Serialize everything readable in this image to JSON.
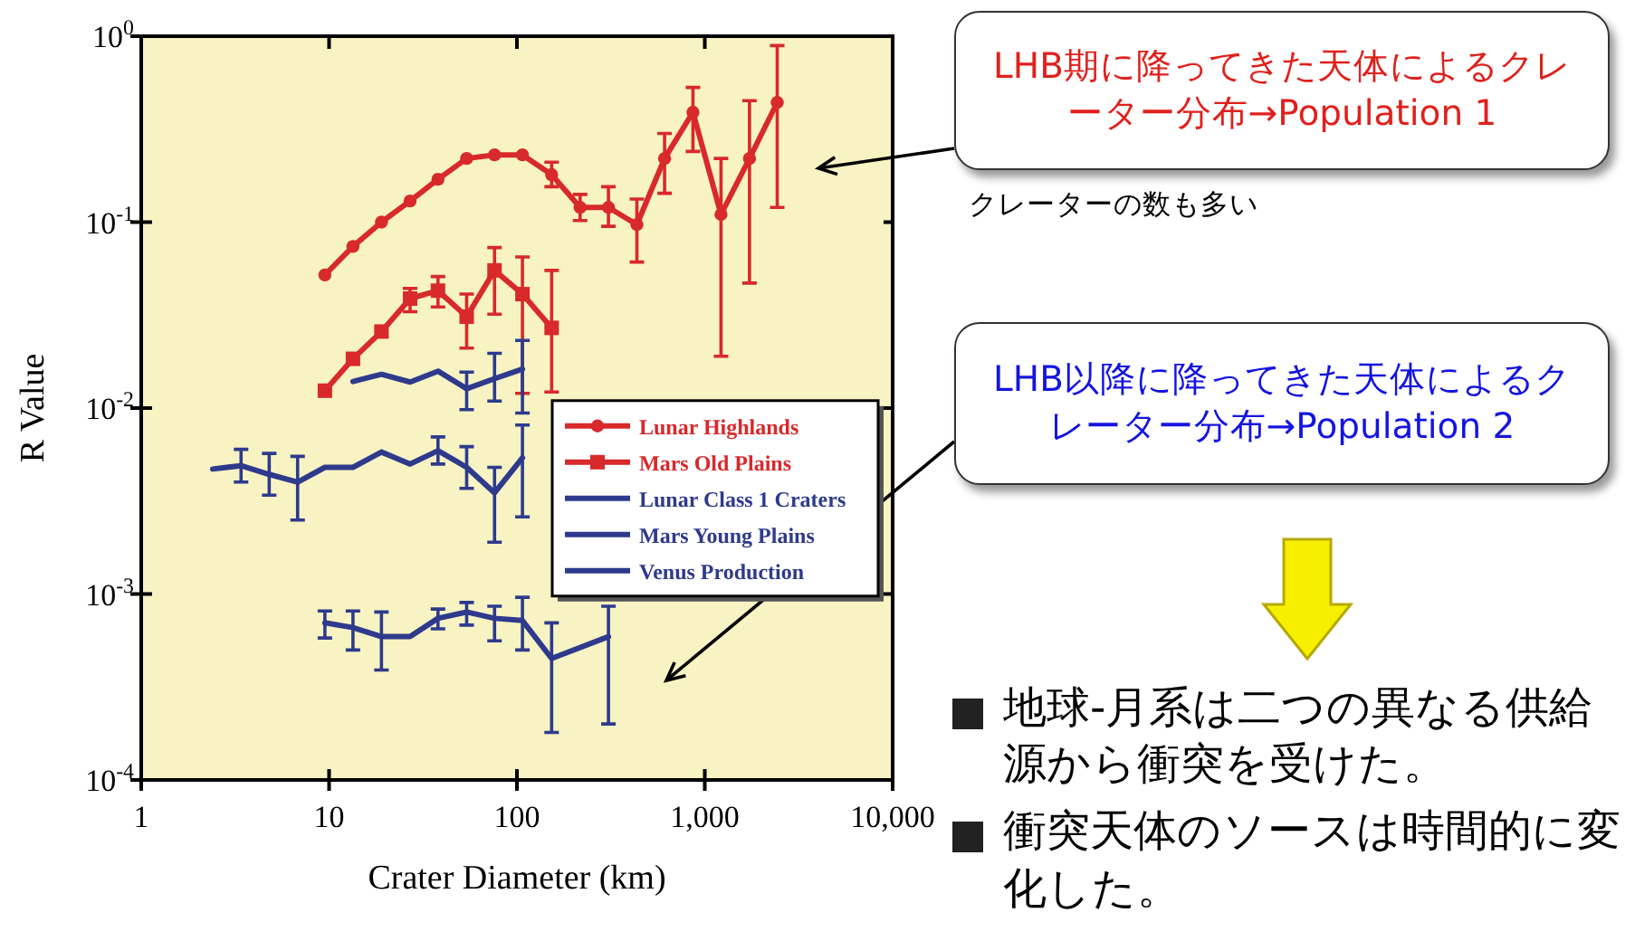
{
  "chart_data": {
    "type": "line",
    "xlabel": "Crater Diameter (km)",
    "ylabel": "R Value",
    "log": "xy",
    "xlim": [
      1,
      10000
    ],
    "ylim": [
      0.0001,
      1
    ],
    "xticks": [
      1,
      10,
      100,
      {
        "value": 1000,
        "label": "1,000"
      },
      {
        "value": 10000,
        "label": "10,000"
      }
    ],
    "yticks": [
      {
        "value": 0.0001,
        "label": "10$^{-4}$"
      },
      {
        "value": 0.001,
        "label": "10$^{-3}$"
      },
      {
        "value": 0.01,
        "label": "10$^{-2}$"
      },
      {
        "value": 0.1,
        "label": "10$^{-1}$"
      },
      {
        "value": 1,
        "label": "10$^{0}$"
      }
    ],
    "grid": false,
    "legend": "right",
    "series": [
      {
        "name": "Lunar Highlands",
        "color": "#d8292b",
        "marker": "circle",
        "x": [
          9.5,
          13.4,
          19,
          27,
          38,
          54,
          76,
          107,
          153,
          217,
          307,
          435,
          611,
          865,
          1220,
          1730,
          2430
        ],
        "values": [
          0.052,
          0.074,
          0.1,
          0.13,
          0.17,
          0.22,
          0.23,
          0.23,
          0.18,
          0.12,
          0.12,
          0.097,
          0.22,
          0.39,
          0.11,
          0.22,
          0.44
        ],
        "errors": [
          null,
          null,
          null,
          null,
          null,
          null,
          null,
          null,
          [
            0.155,
            0.21
          ],
          [
            0.102,
            0.141
          ],
          [
            0.095,
            0.155
          ],
          [
            0.061,
            0.133
          ],
          [
            0.143,
            0.3
          ],
          [
            0.24,
            0.53
          ],
          [
            0.019,
            0.22
          ],
          [
            0.047,
            0.45
          ],
          [
            0.12,
            0.89
          ]
        ]
      },
      {
        "name": "Mars Old Plains",
        "color": "#d8292b",
        "marker": "square",
        "x": [
          9.5,
          13.4,
          19,
          27,
          38,
          54,
          76,
          107,
          153
        ],
        "values": [
          0.0124,
          0.0184,
          0.0258,
          0.0388,
          0.0428,
          0.031,
          0.055,
          0.041,
          0.027
        ],
        "errors": [
          null,
          null,
          null,
          [
            0.033,
            0.044
          ],
          [
            0.035,
            0.051
          ],
          [
            0.021,
            0.041
          ],
          [
            0.032,
            0.073
          ],
          [
            0.012,
            0.065
          ],
          [
            0.0122,
            0.055
          ]
        ]
      },
      {
        "name": "Lunar Class 1 Craters",
        "color": "#2e3a8c",
        "marker": "none",
        "x": [
          13.4,
          19,
          27,
          38,
          54,
          76,
          107
        ],
        "values": [
          0.0139,
          0.0152,
          0.0138,
          0.0158,
          0.0127,
          0.0144,
          0.0162
        ],
        "errors": [
          null,
          null,
          null,
          null,
          [
            0.0098,
            0.0156
          ],
          [
            0.0109,
            0.0197
          ],
          [
            0.0094,
            0.0231
          ]
        ]
      },
      {
        "name": "Mars Young Plains",
        "color": "#2e3a8c",
        "marker": "none",
        "x": [
          2.4,
          3.4,
          4.8,
          6.8,
          9.5,
          13.4,
          19,
          27,
          38,
          54,
          76,
          107
        ],
        "values": [
          0.0047,
          0.0049,
          0.0044,
          0.004,
          0.0048,
          0.0048,
          0.0058,
          0.005,
          0.0059,
          0.0048,
          0.0035,
          0.0054
        ],
        "errors": [
          null,
          [
            0.004,
            0.006
          ],
          [
            0.0034,
            0.0057
          ],
          [
            0.0025,
            0.0055
          ],
          null,
          null,
          null,
          null,
          [
            0.005,
            0.007
          ],
          [
            0.0037,
            0.0062
          ],
          [
            0.0019,
            0.0048
          ],
          [
            0.0026,
            0.0081
          ]
        ]
      },
      {
        "name": "Venus Production",
        "color": "#2e3a8c",
        "marker": "none",
        "x": [
          9.5,
          13.4,
          19,
          27,
          38,
          54,
          76,
          107,
          153,
          307
        ],
        "values": [
          0.0007,
          0.00066,
          0.00059,
          0.00059,
          0.00074,
          0.0008,
          0.00074,
          0.00072,
          0.00045,
          0.00059
        ],
        "errors": [
          [
            0.00058,
            0.00081
          ],
          [
            0.0005,
            0.00081
          ],
          [
            0.00039,
            0.0008
          ],
          null,
          [
            0.00065,
            0.00083
          ],
          [
            0.00068,
            0.0009
          ],
          [
            0.00056,
            0.00086
          ],
          [
            0.0005,
            0.00096
          ],
          [
            0.00018,
            0.0007
          ],
          [
            0.0002,
            0.00086
          ]
        ]
      }
    ],
    "annotations": [
      "LHB期に降ってきた天体によるクレーター分布→Population 1",
      "クレーターの数も多い",
      "LHB以降に降ってきた天体によるクレーター分布→Population 2",
      "地球-月系は二つの異なる供給源から衝突を受けた。",
      "衝突天体のソースは時間的に変化した。"
    ]
  }
}
